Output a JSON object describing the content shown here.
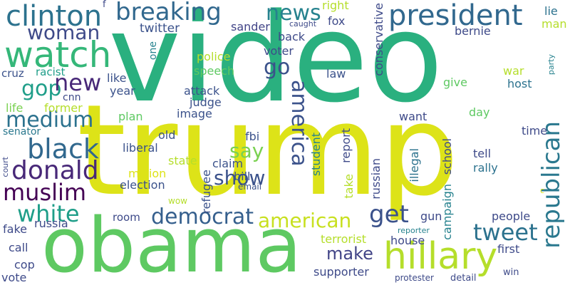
{
  "words": {
    "video": {
      "text": "video",
      "color": "#2ab07f"
    },
    "trump": {
      "text": "trump",
      "color": "#dde318"
    },
    "obama": {
      "text": "obama",
      "color": "#5ec962"
    },
    "hillary": {
      "text": "hillary",
      "color": "#b5de2b"
    },
    "watch": {
      "text": "watch",
      "color": "#35b779"
    },
    "clinton": {
      "text": "clinton",
      "color": "#2c728e"
    },
    "breaking": {
      "text": "breaking",
      "color": "#31688e"
    },
    "president": {
      "text": "president",
      "color": "#31688e"
    },
    "news": {
      "text": "news",
      "color": "#26828e"
    },
    "woman": {
      "text": "woman",
      "color": "#3e4a89"
    },
    "republican": {
      "text": "republican",
      "color": "#2a788e"
    },
    "black": {
      "text": "black",
      "color": "#31688e"
    },
    "donald": {
      "text": "donald",
      "color": "#482878"
    },
    "muslim": {
      "text": "muslim",
      "color": "#440154"
    },
    "white": {
      "text": "white",
      "color": "#1f9e89"
    },
    "medium": {
      "text": "medium",
      "color": "#2c728e"
    },
    "democrat": {
      "text": "democrat",
      "color": "#355f8d"
    },
    "american": {
      "text": "american",
      "color": "#c8e020"
    },
    "get": {
      "text": "get",
      "color": "#3b528b"
    },
    "tweet": {
      "text": "tweet",
      "color": "#2c728e"
    },
    "america": {
      "text": "america",
      "color": "#3b528b"
    },
    "say": {
      "text": "say",
      "color": "#7ad151"
    },
    "show": {
      "text": "show",
      "color": "#3b528b"
    },
    "go": {
      "text": "go",
      "color": "#3b528b"
    },
    "gop": {
      "text": "gop",
      "color": "#1f9e89"
    },
    "new": {
      "text": "new",
      "color": "#482878"
    },
    "make": {
      "text": "make",
      "color": "#414487"
    },
    "twitter": {
      "text": "twitter",
      "color": "#3b528b"
    },
    "sander": {
      "text": "sander",
      "color": "#414487"
    },
    "back": {
      "text": "back",
      "color": "#3e4a89"
    },
    "voter": {
      "text": "voter",
      "color": "#3e4a89"
    },
    "fox": {
      "text": "fox",
      "color": "#3e4a89"
    },
    "right": {
      "text": "right",
      "color": "#b5de2b"
    },
    "conservative": {
      "text": "conservative",
      "color": "#3e4a89"
    },
    "bernie": {
      "text": "bernie",
      "color": "#3e4a89"
    },
    "lie": {
      "text": "lie",
      "color": "#2c728e"
    },
    "man": {
      "text": "man",
      "color": "#b5de2b"
    },
    "police": {
      "text": "police",
      "color": "#b5de2b"
    },
    "speech": {
      "text": "speech",
      "color": "#5ec962"
    },
    "law": {
      "text": "law",
      "color": "#3b528b"
    },
    "party": {
      "text": "party",
      "color": "#26828e"
    },
    "war": {
      "text": "war",
      "color": "#b5de2b"
    },
    "host": {
      "text": "host",
      "color": "#2c728e"
    },
    "give": {
      "text": "give",
      "color": "#5ec962"
    },
    "day": {
      "text": "day",
      "color": "#5ec962"
    },
    "cruz": {
      "text": "cruz",
      "color": "#3b528b"
    },
    "racist": {
      "text": "racist",
      "color": "#1f9e89"
    },
    "cnn": {
      "text": "cnn",
      "color": "#3e4a89"
    },
    "former": {
      "text": "former",
      "color": "#b5de2b"
    },
    "life": {
      "text": "life",
      "color": "#7ad151"
    },
    "senator": {
      "text": "senator",
      "color": "#2a788e"
    },
    "like": {
      "text": "like",
      "color": "#3b528b"
    },
    "year": {
      "text": "year",
      "color": "#3b528b"
    },
    "attack": {
      "text": "attack",
      "color": "#3b528b"
    },
    "judge": {
      "text": "judge",
      "color": "#3b528b"
    },
    "image": {
      "text": "image",
      "color": "#3b528b"
    },
    "plan": {
      "text": "plan",
      "color": "#5ec962"
    },
    "old": {
      "text": "old",
      "color": "#3b528b"
    },
    "fbi": {
      "text": "fbi",
      "color": "#3b528b"
    },
    "liberal": {
      "text": "liberal",
      "color": "#3b528b"
    },
    "state": {
      "text": "state",
      "color": "#b5de2b"
    },
    "million": {
      "text": "million",
      "color": "#dde318"
    },
    "election": {
      "text": "election",
      "color": "#3b528b"
    },
    "claim": {
      "text": "claim",
      "color": "#3b528b"
    },
    "bill": {
      "text": "bill",
      "color": "#3b528b"
    },
    "refugee": {
      "text": "refugee",
      "color": "#3b528b"
    },
    "email": {
      "text": "email",
      "color": "#3b528b"
    },
    "wow": {
      "text": "wow",
      "color": "#b5de2b"
    },
    "room": {
      "text": "room",
      "color": "#3e4a89"
    },
    "fake": {
      "text": "fake",
      "color": "#3e4a89"
    },
    "russia": {
      "text": "russia",
      "color": "#3e4a89"
    },
    "call": {
      "text": "call",
      "color": "#3e4a89"
    },
    "cop": {
      "text": "cop",
      "color": "#3e4a89"
    },
    "vote": {
      "text": "vote",
      "color": "#3e4a89"
    },
    "court": {
      "text": "court",
      "color": "#3e4a89"
    },
    "student": {
      "text": "student",
      "color": "#26828e"
    },
    "report": {
      "text": "report",
      "color": "#3e4a89"
    },
    "take": {
      "text": "take",
      "color": "#b5de2b"
    },
    "russian": {
      "text": "russian",
      "color": "#3e4a89"
    },
    "school": {
      "text": "school",
      "color": "#3e4a89"
    },
    "campaign": {
      "text": "campaign",
      "color": "#26828e"
    },
    "illegal": {
      "text": "illegal",
      "color": "#2c728e"
    },
    "terrorist": {
      "text": "terrorist",
      "color": "#b5de2b"
    },
    "house": {
      "text": "house",
      "color": "#3e4a89"
    },
    "supporter": {
      "text": "supporter",
      "color": "#3e4a89"
    },
    "want": {
      "text": "want",
      "color": "#3e4a89"
    },
    "time": {
      "text": "time",
      "color": "#3e4a89"
    },
    "tell": {
      "text": "tell",
      "color": "#3e4a89"
    },
    "rally": {
      "text": "rally",
      "color": "#2c728e"
    },
    "gun": {
      "text": "gun",
      "color": "#3e4a89"
    },
    "people": {
      "text": "people",
      "color": "#3e4a89"
    },
    "reporter": {
      "text": "reporter",
      "color": "#26828e"
    },
    "first": {
      "text": "first",
      "color": "#3e4a89"
    },
    "detail": {
      "text": "detail",
      "color": "#3e4a89"
    },
    "protester": {
      "text": "protester",
      "color": "#3e4a89"
    },
    "win": {
      "text": "win",
      "color": "#3e4a89"
    },
    "one": {
      "text": "one",
      "color": "#26828e"
    },
    "caught": {
      "text": "caught",
      "color": "#3e4a89"
    },
    "f": {
      "text": "f",
      "color": "#3e4a89"
    },
    "c": {
      "text": "c",
      "color": "#dde318"
    }
  }
}
